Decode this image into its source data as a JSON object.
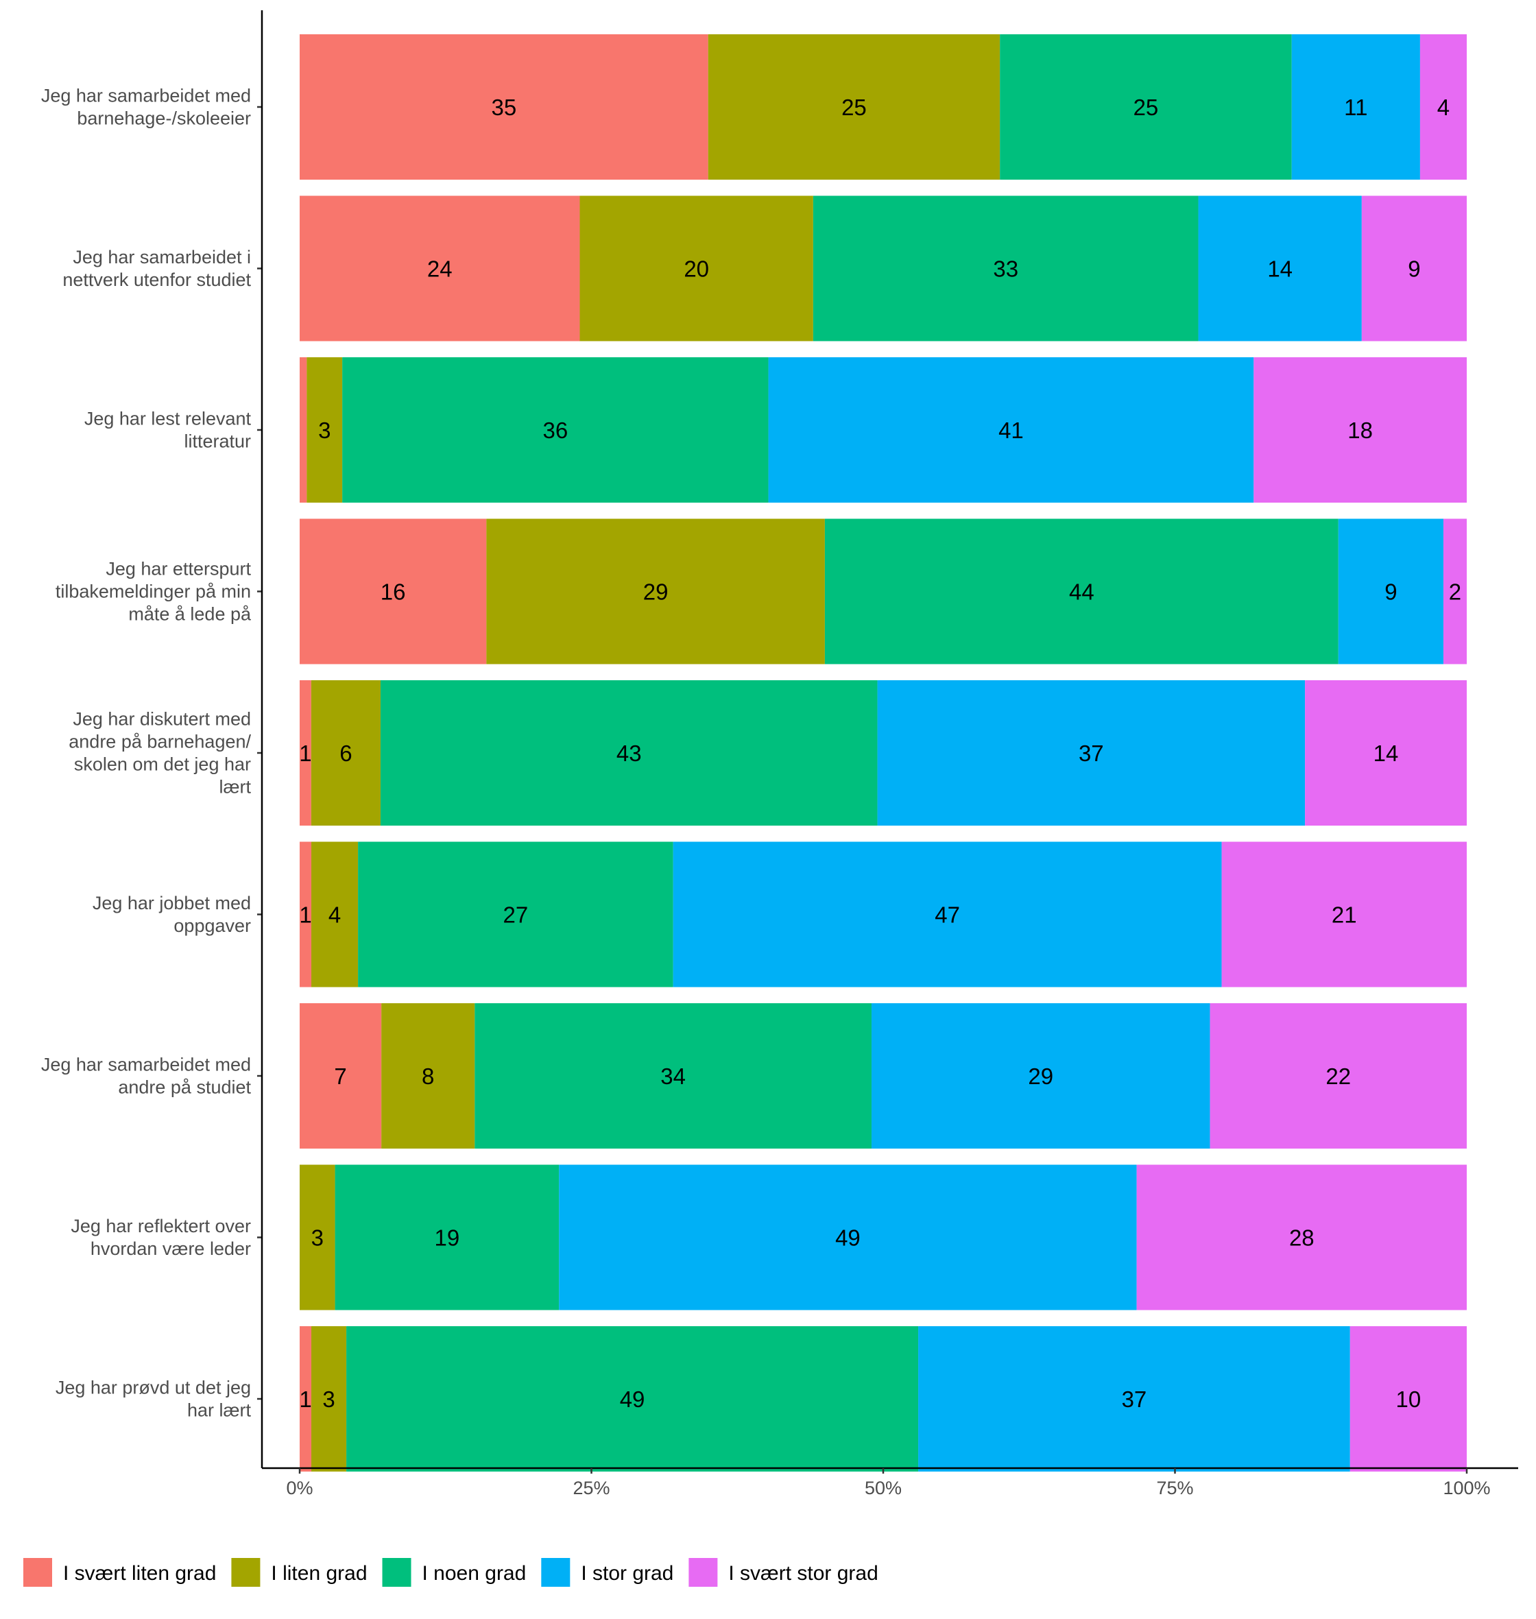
{
  "chart_data": {
    "type": "bar",
    "orientation": "horizontal",
    "stacked": true,
    "normalized": true,
    "categories": [
      [
        "Jeg har samarbeidet med",
        "barnehage-/skoleeier"
      ],
      [
        "Jeg har samarbeidet i",
        "nettverk utenfor studiet"
      ],
      [
        "Jeg har lest relevant",
        "litteratur"
      ],
      [
        "Jeg har etterspurt",
        "tilbakemeldinger på min",
        "måte å lede på"
      ],
      [
        "Jeg har diskutert med",
        "andre på barnehagen/",
        "skolen om det jeg har",
        "lært"
      ],
      [
        "Jeg har jobbet med",
        "oppgaver"
      ],
      [
        "Jeg har samarbeidet med",
        "andre på studiet"
      ],
      [
        "Jeg har reflektert over",
        "hvordan være leder"
      ],
      [
        "Jeg har prøvd ut det jeg",
        "har lært"
      ]
    ],
    "series": [
      {
        "name": "I svært liten grad",
        "color": "#F8766D",
        "values": [
          35,
          24,
          0.6,
          16,
          1,
          1,
          7,
          0,
          1
        ]
      },
      {
        "name": "I liten grad",
        "color": "#A3A500",
        "values": [
          25,
          20,
          3,
          29,
          6,
          4,
          8,
          3,
          3
        ]
      },
      {
        "name": "I noen grad",
        "color": "#00BF7D",
        "values": [
          25,
          33,
          36,
          44,
          43,
          27,
          34,
          19,
          49
        ]
      },
      {
        "name": "I stor grad",
        "color": "#00B0F6",
        "values": [
          11,
          14,
          41,
          9,
          37,
          47,
          29,
          49,
          37
        ]
      },
      {
        "name": "I svært stor grad",
        "color": "#E76BF3",
        "values": [
          4,
          9,
          18,
          2,
          14,
          21,
          22,
          28,
          10
        ]
      }
    ],
    "data_labels": [
      [
        "35",
        "25",
        "25",
        "11",
        "4"
      ],
      [
        "24",
        "20",
        "33",
        "14",
        "9"
      ],
      [
        "",
        "3",
        "36",
        "41",
        "18"
      ],
      [
        "16",
        "29",
        "44",
        "9",
        "2"
      ],
      [
        "1",
        "6",
        "43",
        "37",
        "14"
      ],
      [
        "1",
        "4",
        "27",
        "47",
        "21"
      ],
      [
        "7",
        "8",
        "34",
        "29",
        "22"
      ],
      [
        "",
        "3",
        "19",
        "49",
        "28"
      ],
      [
        "1",
        "3",
        "49",
        "37",
        "10"
      ]
    ],
    "x_ticks": [
      "0%",
      "25%",
      "50%",
      "75%",
      "100%"
    ],
    "xlim": [
      0,
      100
    ],
    "title": "",
    "xlabel": "",
    "ylabel": "",
    "grid": false,
    "legend_position": "bottom"
  }
}
